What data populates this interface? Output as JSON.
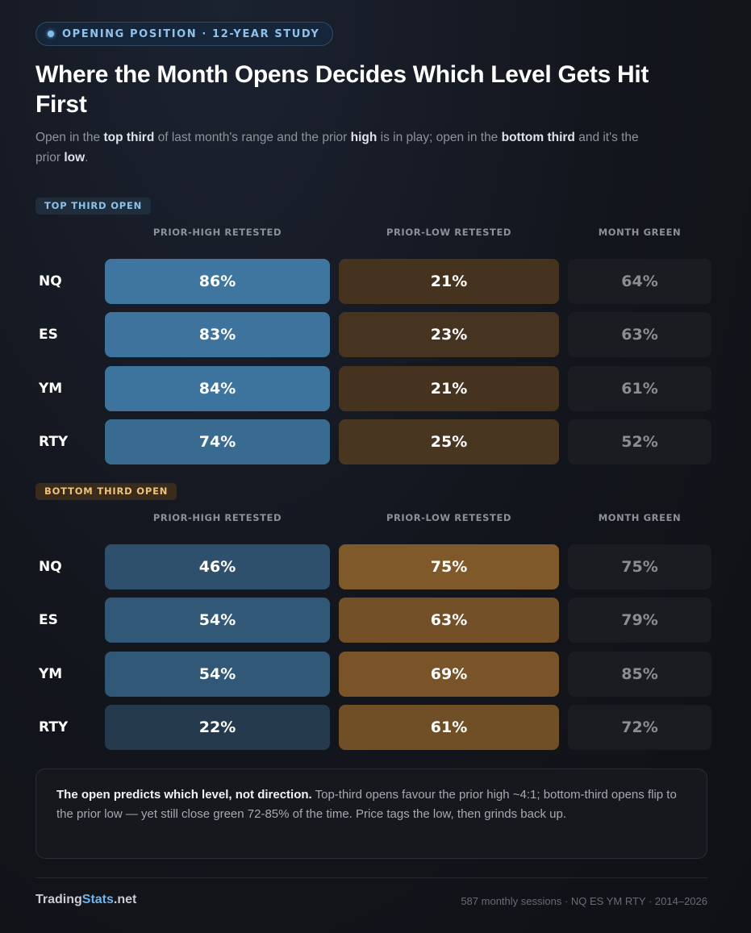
{
  "badge": "OPENING POSITION · 12-YEAR STUDY",
  "title": "Where the Month Opens Decides Which Level Gets Hit First",
  "subtitle": [
    {
      "text": "Open in the "
    },
    {
      "text": "top third",
      "bold": true
    },
    {
      "text": " of last month's range and the prior "
    },
    {
      "text": "high",
      "bold": true
    },
    {
      "text": " is in play; open in the "
    },
    {
      "text": "bottom third",
      "bold": true
    },
    {
      "text": " and it's the prior "
    },
    {
      "text": "low",
      "bold": true
    },
    {
      "text": "."
    }
  ],
  "sections": [
    {
      "label": "TOP THIRD OPEN",
      "columns": [
        "PRIOR-HIGH RETESTED",
        "PRIOR-LOW RETESTED",
        "MONTH GREEN"
      ],
      "rows": [
        {
          "name": "NQ",
          "cells": [
            {
              "value": 86,
              "label": "86%"
            },
            {
              "value": 21,
              "label": "21%"
            },
            {
              "value": 64,
              "label": "64%"
            }
          ]
        },
        {
          "name": "ES",
          "cells": [
            {
              "value": 83,
              "label": "83%"
            },
            {
              "value": 23,
              "label": "23%"
            },
            {
              "value": 63,
              "label": "63%"
            }
          ]
        },
        {
          "name": "YM",
          "cells": [
            {
              "value": 84,
              "label": "84%"
            },
            {
              "value": 21,
              "label": "21%"
            },
            {
              "value": 61,
              "label": "61%"
            }
          ]
        },
        {
          "name": "RTY",
          "cells": [
            {
              "value": 74,
              "label": "74%"
            },
            {
              "value": 25,
              "label": "25%"
            },
            {
              "value": 52,
              "label": "52%"
            }
          ]
        }
      ]
    },
    {
      "label": "BOTTOM THIRD OPEN",
      "columns": [
        "PRIOR-HIGH RETESTED",
        "PRIOR-LOW RETESTED",
        "MONTH GREEN"
      ],
      "rows": [
        {
          "name": "NQ",
          "cells": [
            {
              "value": 46,
              "label": "46%"
            },
            {
              "value": 75,
              "label": "75%"
            },
            {
              "value": 75,
              "label": "75%"
            }
          ]
        },
        {
          "name": "ES",
          "cells": [
            {
              "value": 54,
              "label": "54%"
            },
            {
              "value": 63,
              "label": "63%"
            },
            {
              "value": 79,
              "label": "79%"
            }
          ]
        },
        {
          "name": "YM",
          "cells": [
            {
              "value": 54,
              "label": "54%"
            },
            {
              "value": 69,
              "label": "69%"
            },
            {
              "value": 85,
              "label": "85%"
            }
          ]
        },
        {
          "name": "RTY",
          "cells": [
            {
              "value": 22,
              "label": "22%"
            },
            {
              "value": 61,
              "label": "61%"
            },
            {
              "value": 72,
              "label": "72%"
            }
          ]
        }
      ]
    }
  ],
  "note": {
    "lead": "The open predicts which level, not direction.",
    "text": " Top-third opens favour the prior high ~4:1; bottom-third opens flip to the prior low — yet still close green 72-85% of the time. Price tags the low, then grinds back up."
  },
  "footer": {
    "brand": [
      "Trading",
      "Stats",
      ".net"
    ],
    "meta": "587 monthly sessions · NQ ES YM RTY · 2014–2026"
  }
}
